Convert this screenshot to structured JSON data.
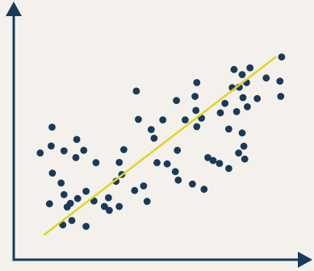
{
  "chart_data": {
    "type": "scatter",
    "title": "",
    "xlabel": "",
    "ylabel": "",
    "xlim": [
      0,
      100
    ],
    "ylim": [
      0,
      100
    ],
    "grid": false,
    "legend": "none",
    "colors": {
      "background": "#f4f1ec",
      "axis": "#183a5b",
      "points": "#183a5b",
      "trendline": "#e3d322"
    },
    "trendline": {
      "x": [
        10.6,
        90.1
      ],
      "y": [
        10.4,
        83.7
      ]
    },
    "points": [
      {
        "x": 9.1,
        "y": 44.1
      },
      {
        "x": 13.2,
        "y": 54.8
      },
      {
        "x": 12.9,
        "y": 47.0
      },
      {
        "x": 17.3,
        "y": 45.0
      },
      {
        "x": 21.7,
        "y": 49.7
      },
      {
        "x": 24.1,
        "y": 45.2
      },
      {
        "x": 21.4,
        "y": 42.2
      },
      {
        "x": 28.3,
        "y": 40.1
      },
      {
        "x": 13.3,
        "y": 35.8
      },
      {
        "x": 16.3,
        "y": 31.7
      },
      {
        "x": 17.3,
        "y": 26.9
      },
      {
        "x": 12.3,
        "y": 23.1
      },
      {
        "x": 18.4,
        "y": 21.8
      },
      {
        "x": 19.5,
        "y": 23.3
      },
      {
        "x": 22.0,
        "y": 25.3
      },
      {
        "x": 24.9,
        "y": 28.3
      },
      {
        "x": 27.6,
        "y": 24.3
      },
      {
        "x": 16.9,
        "y": 14.4
      },
      {
        "x": 20.0,
        "y": 16.2
      },
      {
        "x": 24.9,
        "y": 13.8
      },
      {
        "x": 31.2,
        "y": 22.0
      },
      {
        "x": 32.6,
        "y": 25.6
      },
      {
        "x": 32.9,
        "y": 20.4
      },
      {
        "x": 36.3,
        "y": 22.0
      },
      {
        "x": 35.2,
        "y": 32.4
      },
      {
        "x": 37.2,
        "y": 35.2
      },
      {
        "x": 36.3,
        "y": 40.2
      },
      {
        "x": 37.9,
        "y": 45.5
      },
      {
        "x": 42.9,
        "y": 58.0
      },
      {
        "x": 47.3,
        "y": 53.8
      },
      {
        "x": 51.3,
        "y": 57.8
      },
      {
        "x": 48.3,
        "y": 50.2
      },
      {
        "x": 41.6,
        "y": 28.6
      },
      {
        "x": 44.7,
        "y": 30.5
      },
      {
        "x": 45.9,
        "y": 24.1
      },
      {
        "x": 49.3,
        "y": 40.1
      },
      {
        "x": 52.8,
        "y": 39.6
      },
      {
        "x": 55.6,
        "y": 36.4
      },
      {
        "x": 56.6,
        "y": 32.9
      },
      {
        "x": 56.3,
        "y": 45.2
      },
      {
        "x": 56.0,
        "y": 65.8
      },
      {
        "x": 59.0,
        "y": 57.8
      },
      {
        "x": 62.7,
        "y": 61.7
      },
      {
        "x": 63.0,
        "y": 73.2
      },
      {
        "x": 62.4,
        "y": 67.5
      },
      {
        "x": 63.0,
        "y": 55.0
      },
      {
        "x": 64.6,
        "y": 58.5
      },
      {
        "x": 66.8,
        "y": 42.2
      },
      {
        "x": 61.5,
        "y": 31.3
      },
      {
        "x": 65.5,
        "y": 29.1
      },
      {
        "x": 68.6,
        "y": 41.0
      },
      {
        "x": 70.8,
        "y": 39.8
      },
      {
        "x": 74.0,
        "y": 54.0
      },
      {
        "x": 71.1,
        "y": 60.7
      },
      {
        "x": 72.7,
        "y": 64.6
      },
      {
        "x": 75.2,
        "y": 71.1
      },
      {
        "x": 78.6,
        "y": 76.5
      },
      {
        "x": 77.6,
        "y": 71.3
      },
      {
        "x": 75.8,
        "y": 78.6
      },
      {
        "x": 80.1,
        "y": 73.2
      },
      {
        "x": 81.3,
        "y": 79.3
      },
      {
        "x": 78.9,
        "y": 67.0
      },
      {
        "x": 80.4,
        "y": 63.2
      },
      {
        "x": 76.7,
        "y": 61.2
      },
      {
        "x": 78.6,
        "y": 52.4
      },
      {
        "x": 79.2,
        "y": 46.9
      },
      {
        "x": 77.4,
        "y": 44.1
      },
      {
        "x": 79.5,
        "y": 41.6
      },
      {
        "x": 74.0,
        "y": 37.7
      },
      {
        "x": 83.8,
        "y": 66.6
      },
      {
        "x": 86.9,
        "y": 75.1
      },
      {
        "x": 92.2,
        "y": 83.8
      },
      {
        "x": 91.6,
        "y": 73.8
      },
      {
        "x": 91.9,
        "y": 67.5
      },
      {
        "x": 42.2,
        "y": 69.7
      }
    ]
  }
}
